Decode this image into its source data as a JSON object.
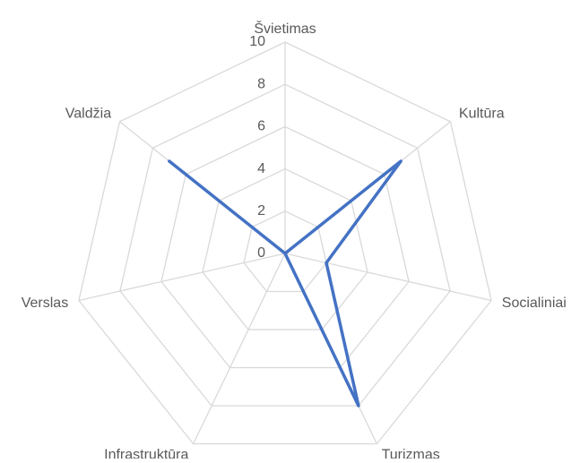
{
  "chart_data": {
    "type": "radar",
    "categories": [
      "Švietimas",
      "Kultūra",
      "Socialiniai",
      "Turizmas",
      "Infrastruktūra",
      "Verslas",
      "Valdžia"
    ],
    "values": [
      0,
      7,
      2,
      8,
      0,
      0,
      7
    ],
    "color": "#4472c4",
    "rlim": [
      0,
      10
    ],
    "rticks": [
      0,
      2,
      4,
      6,
      8,
      10
    ],
    "grid": true
  }
}
